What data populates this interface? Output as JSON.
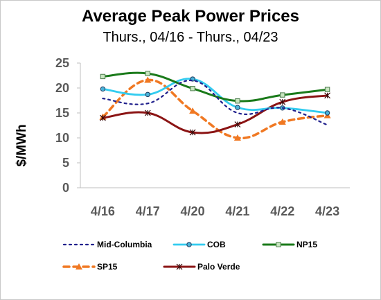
{
  "chart_data": {
    "type": "line",
    "title": "Average Peak Power Prices",
    "subtitle": "Thurs., 04/16 - Thurs., 04/23",
    "ylabel": "$/MWh",
    "xlabel": "",
    "categories": [
      "4/16",
      "4/17",
      "4/20",
      "4/21",
      "4/22",
      "4/23"
    ],
    "ylim": [
      0,
      25
    ],
    "yticks": [
      0,
      5,
      10,
      15,
      20,
      25
    ],
    "grid": false,
    "legend": "bottom",
    "series": [
      {
        "name": "Mid-Columbia",
        "values": [
          17.9,
          16.9,
          21.5,
          15.0,
          16.0,
          12.6
        ],
        "color": "#1f1f8c",
        "style": "dotted",
        "marker": "none"
      },
      {
        "name": "COB",
        "values": [
          19.8,
          18.7,
          21.8,
          16.1,
          16.0,
          15.0
        ],
        "color": "#33ccf0",
        "style": "solid",
        "marker": "circle"
      },
      {
        "name": "NP15",
        "values": [
          22.3,
          22.9,
          19.9,
          17.4,
          18.6,
          19.7
        ],
        "color": "#1a7a1a",
        "style": "solid",
        "marker": "square"
      },
      {
        "name": "SP15",
        "values": [
          14.2,
          21.6,
          15.4,
          10.0,
          13.2,
          14.5
        ],
        "color": "#f07822",
        "style": "dashed",
        "marker": "triangle"
      },
      {
        "name": "Palo Verde",
        "values": [
          14.0,
          15.0,
          11.1,
          12.7,
          17.2,
          18.5
        ],
        "color": "#8b1414",
        "style": "solid",
        "marker": "star"
      }
    ]
  }
}
